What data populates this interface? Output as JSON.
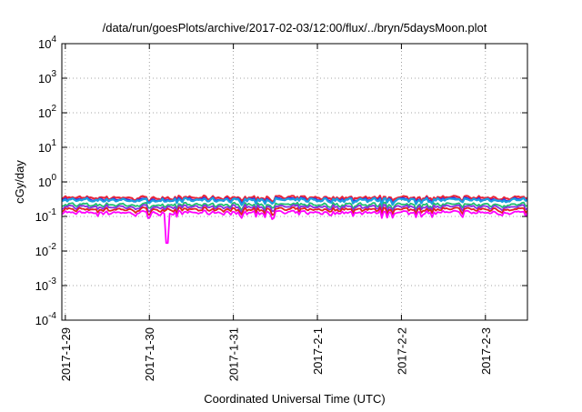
{
  "chart_data": {
    "type": "line",
    "title": "/data/run/goesPlots/archive/2017-02-03/12:00/flux/../bryn/5daysMoon.plot",
    "xlabel": "Coordinated Universal Time (UTC)",
    "ylabel": "cGy/day",
    "y_scale": "log",
    "ylim": [
      0.0001,
      10000
    ],
    "xlim": [
      "2017-01-28T23:00",
      "2017-02-03T12:00"
    ],
    "x_ticks": [
      "2017-1-29",
      "2017-1-30",
      "2017-1-31",
      "2017-2-1",
      "2017-2-2",
      "2017-2-3"
    ],
    "y_ticks": [
      {
        "base": "10",
        "exp": "-4"
      },
      {
        "base": "10",
        "exp": "-3"
      },
      {
        "base": "10",
        "exp": "-2"
      },
      {
        "base": "10",
        "exp": "-1"
      },
      {
        "base": "10",
        "exp": "0"
      },
      {
        "base": "10",
        "exp": "1"
      },
      {
        "base": "10",
        "exp": "2"
      },
      {
        "base": "10",
        "exp": "3"
      },
      {
        "base": "10",
        "exp": "4"
      }
    ],
    "grid": true,
    "series": [
      {
        "color": "#e8253a",
        "level": 0.35,
        "dip_factor": 0.75
      },
      {
        "color": "#3030e8",
        "level": 0.31,
        "dip_factor": 0.72
      },
      {
        "color": "#1aa0e0",
        "level": 0.3,
        "dip_factor": 0.7
      },
      {
        "color": "#20c070",
        "level": 0.22,
        "dip_factor": 0.68
      },
      {
        "color": "#8a2be2",
        "level": 0.19,
        "dip_factor": 0.62
      },
      {
        "color": "#e02020",
        "level": 0.16,
        "dip_factor": 0.6
      },
      {
        "color": "#ff00ff",
        "level": 0.13,
        "dip_factor": 0.55
      }
    ],
    "notable_dip": {
      "x": "2017-01-30T05:00",
      "y": 0.017
    }
  }
}
